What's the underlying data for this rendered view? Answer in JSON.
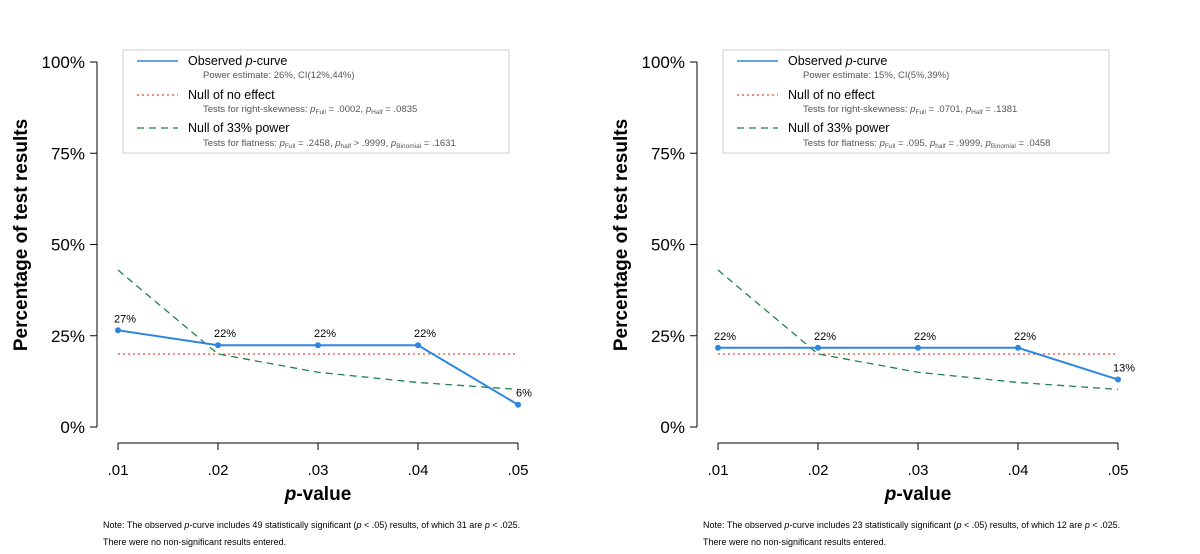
{
  "chart_data": [
    {
      "type": "line",
      "xlabel_italic": "p",
      "xlabel_rest": "-value",
      "ylabel": "Percentage of test results",
      "x": [
        ".01",
        ".02",
        ".03",
        ".04",
        ".05"
      ],
      "x_numeric": [
        0.01,
        0.02,
        0.03,
        0.04,
        0.05
      ],
      "yticks": [
        "0%",
        "25%",
        "50%",
        "75%",
        "100%"
      ],
      "ylim": [
        0,
        100
      ],
      "series": [
        {
          "name": "Observed p-curve",
          "style": "solid",
          "color": "#2e86de",
          "values": [
            26.5,
            22.4,
            22.4,
            22.4,
            6.1
          ],
          "labels": [
            "27%",
            "22%",
            "22%",
            "22%",
            "6%"
          ]
        },
        {
          "name": "Null of no effect",
          "style": "dotted",
          "color": "#e74c3c",
          "values": [
            20,
            20,
            20,
            20,
            20
          ]
        },
        {
          "name": "Null of 33% power",
          "style": "dashed",
          "color": "#1e8449",
          "values": [
            43,
            20,
            15,
            12.2,
            10.3
          ]
        }
      ],
      "legend": {
        "placement": "top",
        "observed": "Observed ",
        "observed_italic": "p",
        "observed_rest": "-curve",
        "power_estimate": "Power estimate: 26%, CI(12%,44%)",
        "null_no_effect": "Null of no effect",
        "right_skew_prefix": "Tests for right-skewness: ",
        "right_skew_full": " = .0002,  ",
        "right_skew_half": " = .0835",
        "null_33": "Null of 33% power",
        "flatness_prefix": "Tests for flatness: ",
        "flatness_full": " = .2458,  ",
        "flatness_half": "  > .9999,  ",
        "flatness_binomial": " = .1631"
      },
      "note": {
        "line1_a": "Note: The observed ",
        "line1_b": "-curve includes 49 statistically significant (",
        "line1_c": " < .05) results, of which 31 are ",
        "line1_d": " < .025.",
        "line2": "There were no non-significant results entered."
      }
    },
    {
      "type": "line",
      "xlabel_italic": "p",
      "xlabel_rest": "-value",
      "ylabel": "Percentage of test results",
      "x": [
        ".01",
        ".02",
        ".03",
        ".04",
        ".05"
      ],
      "x_numeric": [
        0.01,
        0.02,
        0.03,
        0.04,
        0.05
      ],
      "yticks": [
        "0%",
        "25%",
        "50%",
        "75%",
        "100%"
      ],
      "ylim": [
        0,
        100
      ],
      "series": [
        {
          "name": "Observed p-curve",
          "style": "solid",
          "color": "#2e86de",
          "values": [
            21.7,
            21.7,
            21.7,
            21.7,
            13.0
          ],
          "labels": [
            "22%",
            "22%",
            "22%",
            "22%",
            "13%"
          ]
        },
        {
          "name": "Null of no effect",
          "style": "dotted",
          "color": "#e74c3c",
          "values": [
            20,
            20,
            20,
            20,
            20
          ]
        },
        {
          "name": "Null of 33% power",
          "style": "dashed",
          "color": "#1e8449",
          "values": [
            43,
            20,
            15,
            12.2,
            10.3
          ]
        }
      ],
      "legend": {
        "placement": "top",
        "observed": "Observed ",
        "observed_italic": "p",
        "observed_rest": "-curve",
        "power_estimate": "Power estimate: 15%, CI(5%,39%)",
        "null_no_effect": "Null of no effect",
        "right_skew_prefix": "Tests for right-skewness: ",
        "right_skew_full": " = .0701,  ",
        "right_skew_half": " = .1381",
        "null_33": "Null of 33% power",
        "flatness_prefix": "Tests for flatness: ",
        "flatness_full": " = .095,  ",
        "flatness_half": " = .9999,  ",
        "flatness_binomial": " = .0458"
      },
      "note": {
        "line1_a": "Note: The observed ",
        "line1_b": "-curve includes 23 statistically significant (",
        "line1_c": " < .05) results, of which 12 are ",
        "line1_d": " < .025.",
        "line2": "There were no non-significant results entered."
      }
    }
  ]
}
